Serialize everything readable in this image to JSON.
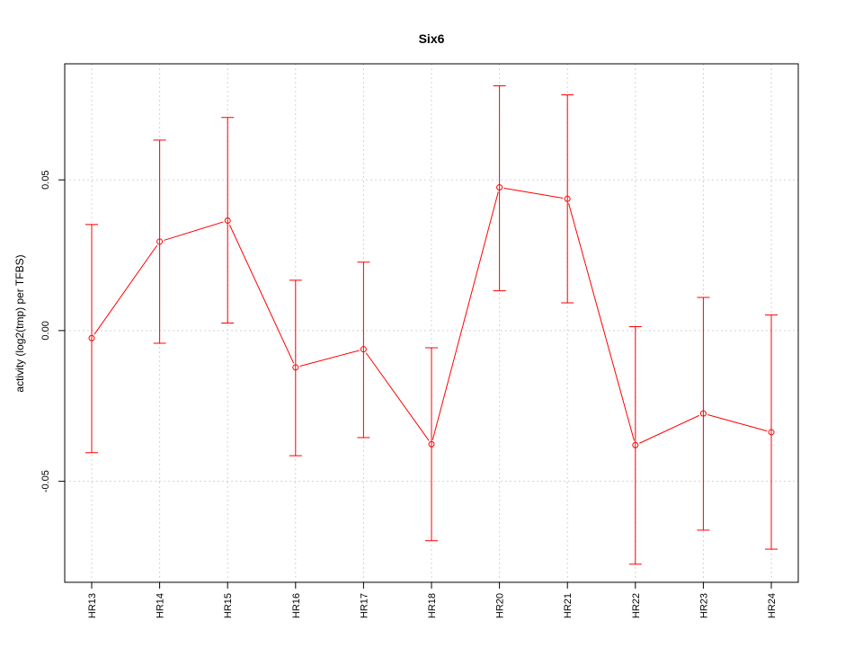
{
  "chart_data": {
    "type": "line",
    "title": "Six6",
    "xlabel": "",
    "ylabel": "activity (log2(tmp) per TFBS)",
    "categories": [
      "HR13",
      "HR14",
      "HR15",
      "HR16",
      "HR17",
      "HR18",
      "HR20",
      "HR21",
      "HR22",
      "HR23",
      "HR24"
    ],
    "series": [
      {
        "values": [
          -0.0025,
          0.0295,
          0.0365,
          -0.0122,
          -0.0062,
          -0.0377,
          0.0475,
          0.0437,
          -0.038,
          -0.0275,
          -0.0337
        ],
        "upper": [
          0.0352,
          0.0632,
          0.0707,
          0.0167,
          0.0227,
          -0.0057,
          0.0812,
          0.0782,
          0.0013,
          0.011,
          0.0052
        ],
        "lower": [
          -0.0405,
          -0.0042,
          0.0025,
          -0.0415,
          -0.0355,
          -0.0697,
          0.0132,
          0.0092,
          -0.0775,
          -0.0662,
          -0.0725
        ],
        "color": "#ff0000"
      }
    ],
    "yticks": [
      -0.05,
      0.0,
      0.05
    ],
    "ytick_labels": [
      "-0.05",
      "0.00",
      "0.05"
    ],
    "ylim": [
      -0.0835,
      0.0885
    ],
    "grid": true,
    "legend": "none"
  }
}
